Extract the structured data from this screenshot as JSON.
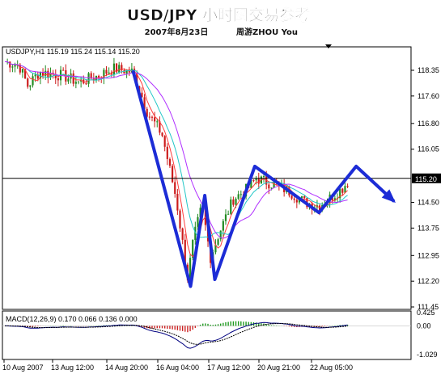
{
  "header": {
    "title": "USD/JPY 小时图交易参考",
    "subtitle_date": "2007年8月23日",
    "subtitle_author": "周游ZHOU You"
  },
  "chart_data": {
    "type": "candlestick",
    "instrument_label": "USDJPY,H1  115.19 115.24 115.14 115.20",
    "price_axis": {
      "ticks": [
        118.35,
        117.6,
        116.8,
        116.05,
        115.2,
        114.5,
        113.75,
        112.95,
        112.2,
        111.45
      ],
      "labels": [
        "118.35",
        "117.60",
        "116.80",
        "116.05",
        "115.20",
        "114.50",
        "113.75",
        "112.95",
        "112.20",
        "111.45"
      ],
      "current_price": 115.2,
      "current_label": "115.20"
    },
    "time_axis": {
      "labels": [
        "10 Aug 2007",
        "13 Aug 12:00",
        "14 Aug 20:00",
        "16 Aug 04:00",
        "17 Aug 12:00",
        "20 Aug 21:00",
        "22 Aug 05:00"
      ]
    },
    "macd": {
      "label": "MACD(12,26,9) 0.170 0.066 0.136 0.000",
      "ticks": [
        0.425,
        0.0,
        -1.029
      ],
      "tick_labels": [
        "0.425",
        "0.00",
        "-1.029"
      ]
    },
    "trend_path": [
      {
        "t": 0.45,
        "price": 118.3
      },
      {
        "t": 0.65,
        "price": 112.05
      },
      {
        "t": 0.7,
        "price": 114.7
      },
      {
        "t": 0.735,
        "price": 112.25
      },
      {
        "t": 0.875,
        "price": 115.55
      },
      {
        "t": 1.1,
        "price": 114.2
      },
      {
        "t": 1.23,
        "price": 115.55
      },
      {
        "t": 1.36,
        "price": 114.55
      }
    ],
    "colors": {
      "trend": "#1c2cd6",
      "ma_fast": "#ff3b3b",
      "ma_mid": "#22c7c7",
      "ma_slow": "#b030ff",
      "candle_up": "#228b22",
      "candle_down": "#cc1c1c",
      "macd_hist_pos": "#1e9a1e",
      "macd_hist_neg": "#cc2222"
    }
  }
}
